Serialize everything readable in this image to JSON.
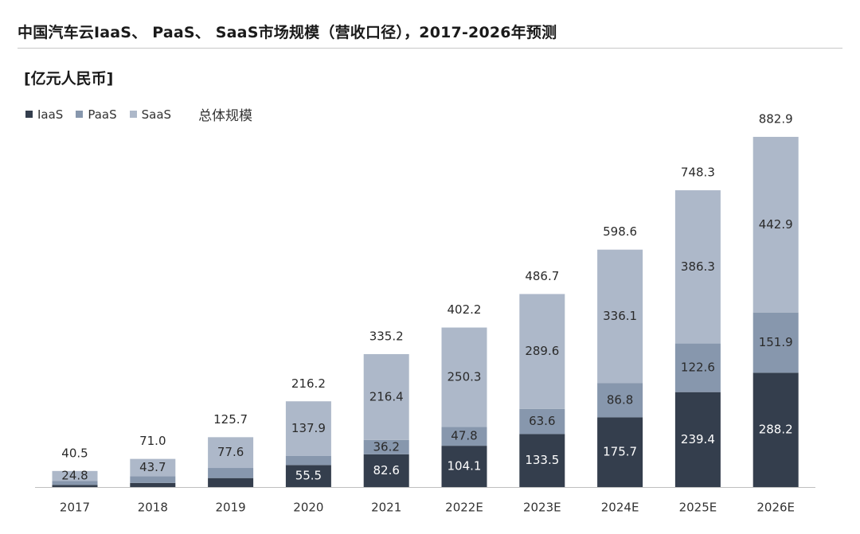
{
  "header": {
    "title": "中国汽车云IaaS、 PaaS、 SaaS市场规模（营收口径），2017-2026年预测",
    "unit": "[亿元人民币]"
  },
  "legend": {
    "items": [
      {
        "label": "IaaS",
        "color": "#343e4d"
      },
      {
        "label": "PaaS",
        "color": "#8797ad"
      },
      {
        "label": "SaaS",
        "color": "#adb8c9"
      }
    ],
    "total_label": "总体规模"
  },
  "chart_data": {
    "type": "bar",
    "stacked": true,
    "categories": [
      "2017",
      "2018",
      "2019",
      "2020",
      "2021",
      "2022E",
      "2023E",
      "2024E",
      "2025E",
      "2026E"
    ],
    "series": [
      {
        "name": "IaaS",
        "color": "#343e4d",
        "values": [
          5.5,
          10.4,
          22.7,
          55.5,
          82.6,
          104.1,
          133.5,
          175.7,
          239.4,
          288.2
        ]
      },
      {
        "name": "PaaS",
        "color": "#8797ad",
        "values": [
          10.2,
          16.9,
          25.4,
          22.8,
          36.2,
          47.8,
          63.6,
          86.8,
          122.6,
          151.9
        ]
      },
      {
        "name": "SaaS",
        "color": "#adb8c9",
        "values": [
          24.8,
          43.7,
          77.6,
          137.9,
          216.4,
          250.3,
          289.6,
          336.1,
          386.3,
          442.9
        ]
      }
    ],
    "data_labels": {
      "IaaS": [
        "",
        "",
        "",
        "55.5",
        "82.6",
        "104.1",
        "133.5",
        "175.7",
        "239.4",
        "288.2"
      ],
      "PaaS": [
        "",
        "",
        "",
        "",
        "36.2",
        "47.8",
        "63.6",
        "86.8",
        "122.6",
        "151.9"
      ],
      "SaaS": [
        "24.8",
        "43.7",
        "77.6",
        "137.9",
        "216.4",
        "250.3",
        "289.6",
        "336.1",
        "386.3",
        "442.9"
      ]
    },
    "totals": [
      "40.5",
      "71.0",
      "125.7",
      "216.2",
      "335.2",
      "402.2",
      "486.7",
      "598.6",
      "748.3",
      "882.9"
    ],
    "ylim": [
      0,
      882.9
    ],
    "grid": false,
    "legend_position": "top-left"
  }
}
